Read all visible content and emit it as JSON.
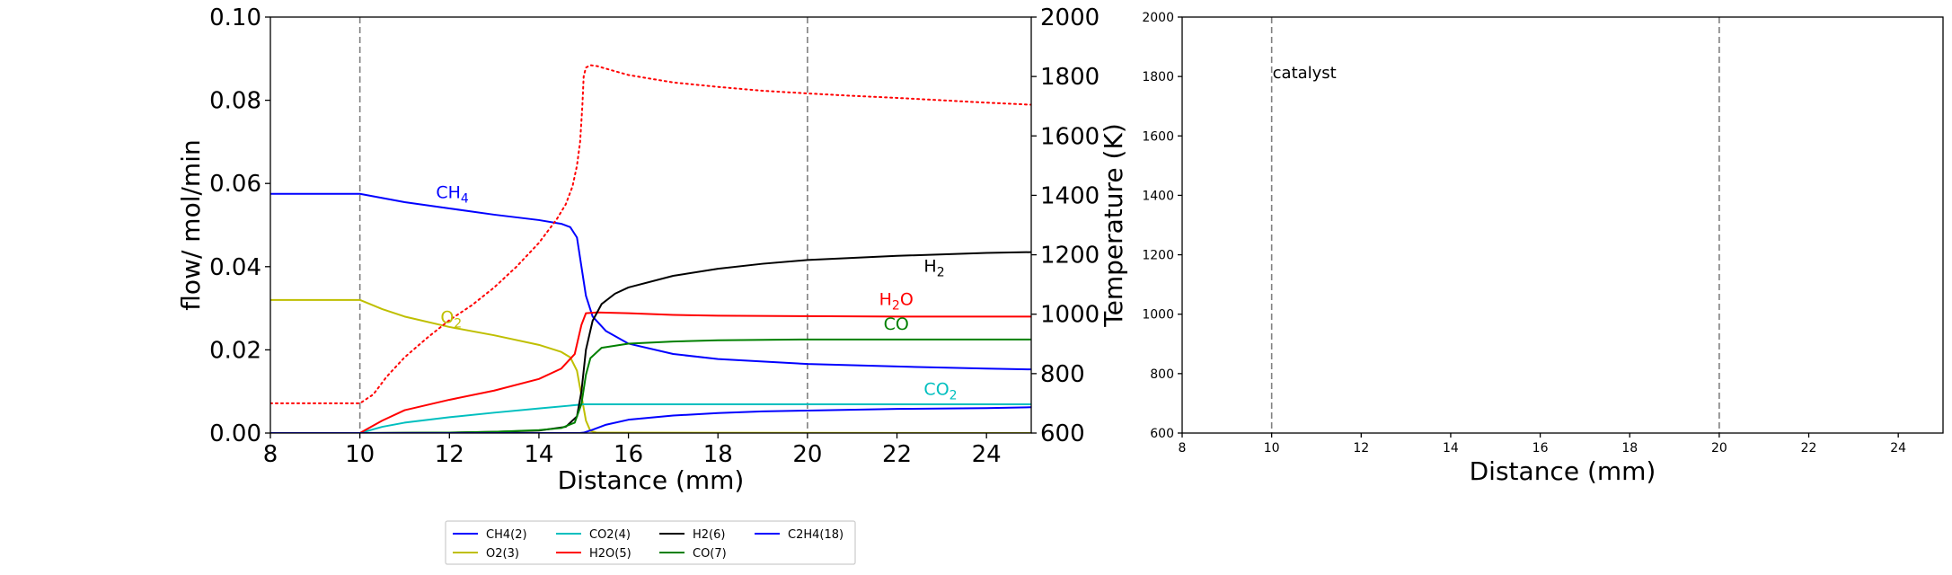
{
  "chart_data": [
    {
      "type": "line",
      "xlabel": "Distance (mm)",
      "ylabel": "flow/ mol/min",
      "y2label": "Temperature (K)",
      "xlim": [
        8,
        25
      ],
      "ylim": [
        0,
        0.1
      ],
      "y2lim": [
        600,
        2000
      ],
      "xticks": [
        "8",
        "10",
        "12",
        "14",
        "16",
        "18",
        "20",
        "22",
        "24"
      ],
      "yticks": [
        "0.00",
        "0.02",
        "0.04",
        "0.06",
        "0.08",
        "0.10"
      ],
      "y2ticks": [
        "600",
        "800",
        "1000",
        "1200",
        "1400",
        "1600",
        "1800",
        "2000"
      ],
      "vlines": [
        10,
        20
      ],
      "grid": false,
      "series": [
        {
          "name": "CH4(2)",
          "color": "#0000ff",
          "points": [
            [
              8,
              0.0575
            ],
            [
              10,
              0.0575
            ],
            [
              10.5,
              0.0565
            ],
            [
              11,
              0.0555
            ],
            [
              12,
              0.054
            ],
            [
              13,
              0.0525
            ],
            [
              14,
              0.0512
            ],
            [
              14.5,
              0.0503
            ],
            [
              14.7,
              0.0495
            ],
            [
              14.85,
              0.047
            ],
            [
              14.95,
              0.04
            ],
            [
              15.05,
              0.033
            ],
            [
              15.2,
              0.028
            ],
            [
              15.5,
              0.0245
            ],
            [
              16,
              0.0215
            ],
            [
              17,
              0.019
            ],
            [
              18,
              0.0178
            ],
            [
              19,
              0.0172
            ],
            [
              20,
              0.0166
            ],
            [
              22,
              0.016
            ],
            [
              24,
              0.0155
            ],
            [
              25,
              0.0153
            ]
          ]
        },
        {
          "name": "O2(3)",
          "color": "#bfbf00",
          "points": [
            [
              8,
              0.032
            ],
            [
              10,
              0.032
            ],
            [
              10.5,
              0.0298
            ],
            [
              11,
              0.028
            ],
            [
              12,
              0.0255
            ],
            [
              13,
              0.0235
            ],
            [
              14,
              0.0212
            ],
            [
              14.5,
              0.0195
            ],
            [
              14.7,
              0.0182
            ],
            [
              14.85,
              0.015
            ],
            [
              14.95,
              0.009
            ],
            [
              15.05,
              0.003
            ],
            [
              15.15,
              0.0005
            ],
            [
              15.3,
              0.0001
            ],
            [
              25,
              0.0
            ]
          ]
        },
        {
          "name": "CO2(4)",
          "color": "#00bfbf",
          "points": [
            [
              8,
              0.0
            ],
            [
              10,
              0.0
            ],
            [
              10.5,
              0.0015
            ],
            [
              11,
              0.0025
            ],
            [
              12,
              0.0038
            ],
            [
              13,
              0.0049
            ],
            [
              14,
              0.0059
            ],
            [
              14.7,
              0.0066
            ],
            [
              15,
              0.0069
            ],
            [
              16,
              0.0069
            ],
            [
              18,
              0.0069
            ],
            [
              20,
              0.0069
            ],
            [
              22,
              0.0069
            ],
            [
              25,
              0.0069
            ]
          ]
        },
        {
          "name": "H2O(5)",
          "color": "#ff0000",
          "points": [
            [
              8,
              0.0
            ],
            [
              10,
              0.0
            ],
            [
              10.5,
              0.003
            ],
            [
              11,
              0.0055
            ],
            [
              12,
              0.008
            ],
            [
              13,
              0.0102
            ],
            [
              14,
              0.013
            ],
            [
              14.5,
              0.0155
            ],
            [
              14.8,
              0.019
            ],
            [
              14.95,
              0.026
            ],
            [
              15.05,
              0.0288
            ],
            [
              15.3,
              0.029
            ],
            [
              16,
              0.0288
            ],
            [
              17,
              0.0284
            ],
            [
              18,
              0.0282
            ],
            [
              20,
              0.0281
            ],
            [
              22,
              0.028
            ],
            [
              25,
              0.028
            ]
          ]
        },
        {
          "name": "H2(6)",
          "color": "#000000",
          "points": [
            [
              8,
              0.0
            ],
            [
              10,
              0.0
            ],
            [
              12,
              0.0001
            ],
            [
              13,
              0.0003
            ],
            [
              14,
              0.0006
            ],
            [
              14.6,
              0.0015
            ],
            [
              14.85,
              0.004
            ],
            [
              14.95,
              0.01
            ],
            [
              15.05,
              0.02
            ],
            [
              15.2,
              0.027
            ],
            [
              15.4,
              0.031
            ],
            [
              15.7,
              0.0335
            ],
            [
              16,
              0.035
            ],
            [
              17,
              0.0378
            ],
            [
              18,
              0.0395
            ],
            [
              19,
              0.0407
            ],
            [
              20,
              0.0416
            ],
            [
              22,
              0.0426
            ],
            [
              24,
              0.0433
            ],
            [
              25,
              0.0435
            ]
          ]
        },
        {
          "name": "CO(7)",
          "color": "#008000",
          "points": [
            [
              8,
              0.0
            ],
            [
              10,
              0.0
            ],
            [
              12,
              0.0001
            ],
            [
              13,
              0.0003
            ],
            [
              14,
              0.0007
            ],
            [
              14.5,
              0.0012
            ],
            [
              14.8,
              0.0025
            ],
            [
              14.95,
              0.007
            ],
            [
              15.05,
              0.014
            ],
            [
              15.15,
              0.018
            ],
            [
              15.4,
              0.0205
            ],
            [
              16,
              0.0215
            ],
            [
              17,
              0.022
            ],
            [
              18,
              0.0223
            ],
            [
              20,
              0.0225
            ],
            [
              22,
              0.0225
            ],
            [
              25,
              0.0225
            ]
          ]
        },
        {
          "name": "C2H4(18)",
          "color": "#0000ff",
          "points": [
            [
              8,
              0.0
            ],
            [
              10,
              0.0
            ],
            [
              14,
              0.0
            ],
            [
              14.9,
              0.0
            ],
            [
              15,
              0.0001
            ],
            [
              15.2,
              0.0008
            ],
            [
              15.5,
              0.002
            ],
            [
              16,
              0.0032
            ],
            [
              17,
              0.0042
            ],
            [
              18,
              0.0048
            ],
            [
              19,
              0.0052
            ],
            [
              20,
              0.0054
            ],
            [
              22,
              0.0058
            ],
            [
              24,
              0.006
            ],
            [
              25,
              0.0062
            ]
          ]
        },
        {
          "name": "Temperature",
          "axis": "y2",
          "color": "#ff0000",
          "style": "dotted",
          "points": [
            [
              8,
              700
            ],
            [
              10,
              700
            ],
            [
              10.3,
              730
            ],
            [
              10.6,
              790
            ],
            [
              11,
              855
            ],
            [
              11.5,
              920
            ],
            [
              12,
              980
            ],
            [
              12.5,
              1030
            ],
            [
              13,
              1090
            ],
            [
              13.5,
              1160
            ],
            [
              14,
              1240
            ],
            [
              14.4,
              1320
            ],
            [
              14.6,
              1370
            ],
            [
              14.75,
              1430
            ],
            [
              14.85,
              1500
            ],
            [
              14.92,
              1580
            ],
            [
              14.97,
              1700
            ],
            [
              15.0,
              1800
            ],
            [
              15.05,
              1830
            ],
            [
              15.15,
              1838
            ],
            [
              15.3,
              1835
            ],
            [
              15.6,
              1822
            ],
            [
              16,
              1805
            ],
            [
              17,
              1780
            ],
            [
              18,
              1765
            ],
            [
              19,
              1752
            ],
            [
              20,
              1743
            ],
            [
              21,
              1735
            ],
            [
              22,
              1728
            ],
            [
              23,
              1720
            ],
            [
              24,
              1712
            ],
            [
              25,
              1705
            ]
          ]
        }
      ],
      "annotations": [
        {
          "base": "CH",
          "sub": "4",
          "color": "#0000ff",
          "x": 11.7,
          "y": 0.0565
        },
        {
          "base": "O",
          "sub": "2",
          "color": "#bfbf00",
          "x": 11.8,
          "y": 0.0265
        },
        {
          "base": "H",
          "sub": "2",
          "color": "#000000",
          "x": 22.6,
          "y": 0.0388
        },
        {
          "base": "H",
          "sub": "2",
          "tail": "O",
          "color": "#ff0000",
          "x": 21.6,
          "y": 0.0308
        },
        {
          "base": "CO",
          "sub": "",
          "color": "#008000",
          "x": 21.7,
          "y": 0.0248
        },
        {
          "base": "CO",
          "sub": "2",
          "color": "#00bfbf",
          "x": 22.6,
          "y": 0.0092
        }
      ],
      "legend": {
        "placement": "bottom",
        "entries": [
          {
            "label": "CH4(2)",
            "color": "#0000ff"
          },
          {
            "label": "CO2(4)",
            "color": "#00bfbf"
          },
          {
            "label": "H2(6)",
            "color": "#000000"
          },
          {
            "label": "C2H4(18)",
            "color": "#0000ff"
          },
          {
            "label": "O2(3)",
            "color": "#bfbf00"
          },
          {
            "label": "H2O(5)",
            "color": "#ff0000"
          },
          {
            "label": "CO(7)",
            "color": "#008000"
          }
        ]
      }
    },
    {
      "type": "line",
      "xlabel": "Distance (mm)",
      "xlim": [
        8,
        25
      ],
      "ylim": [
        600,
        2000
      ],
      "xticks": [
        "8",
        "10",
        "12",
        "14",
        "16",
        "18",
        "20",
        "22",
        "24"
      ],
      "yticks": [
        "600",
        "800",
        "1000",
        "1200",
        "1400",
        "1600",
        "1800",
        "2000"
      ],
      "vlines": [
        10,
        20
      ],
      "grid": false,
      "annotation": "catalyst",
      "series": []
    }
  ]
}
